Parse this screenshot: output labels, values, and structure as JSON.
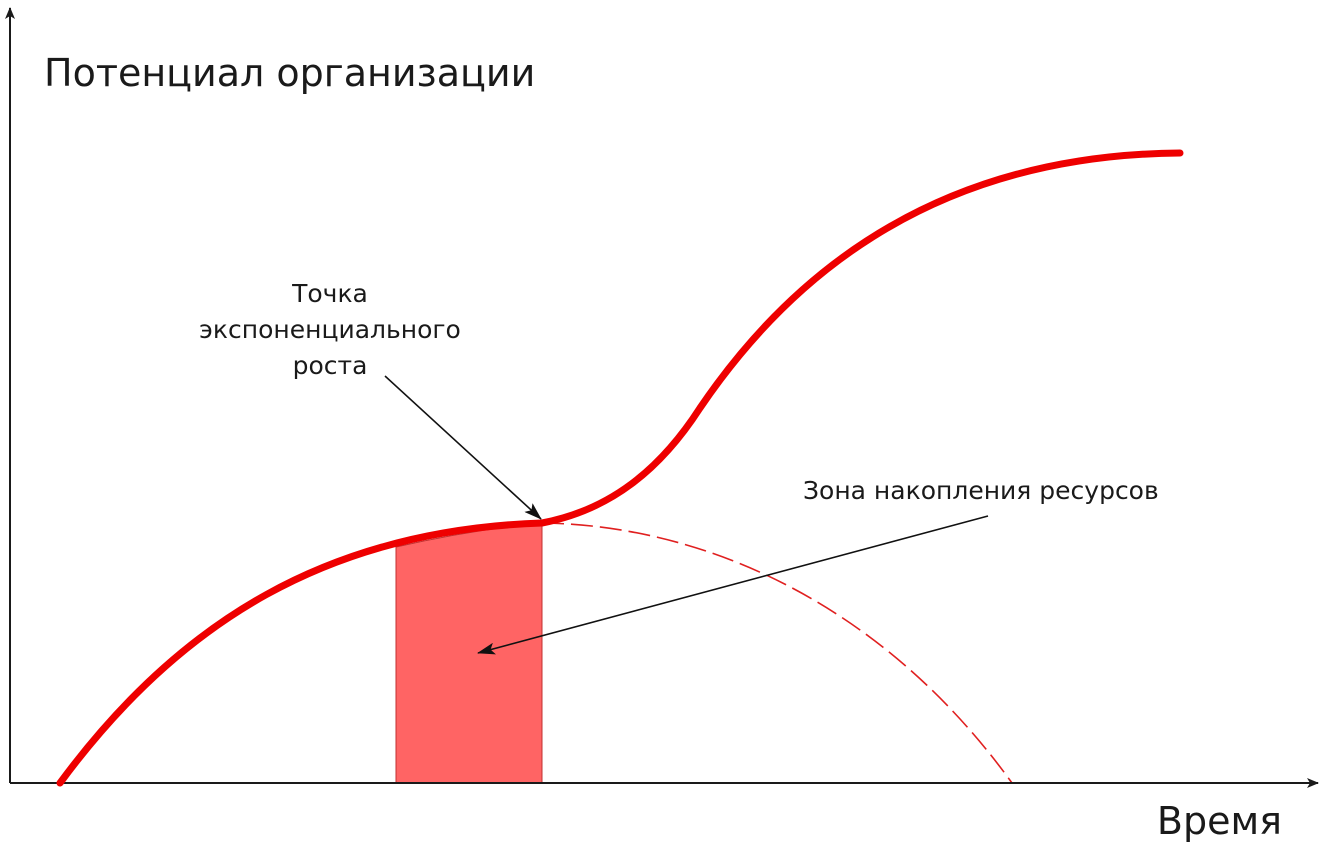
{
  "y_axis_title": "Потенциал организации",
  "x_axis_title": "Время",
  "annotations": {
    "growth_point": {
      "lines": [
        "Точка",
        "экспоненциального",
        "роста"
      ]
    },
    "resource_zone": {
      "text": "Зона накопления ресурсов"
    }
  },
  "colors": {
    "main_curve": "#ee0000",
    "dashed_curve": "#e02020",
    "zone_fill": "#ff6464",
    "axes": "#1a1a1a",
    "arrows": "#111111"
  }
}
